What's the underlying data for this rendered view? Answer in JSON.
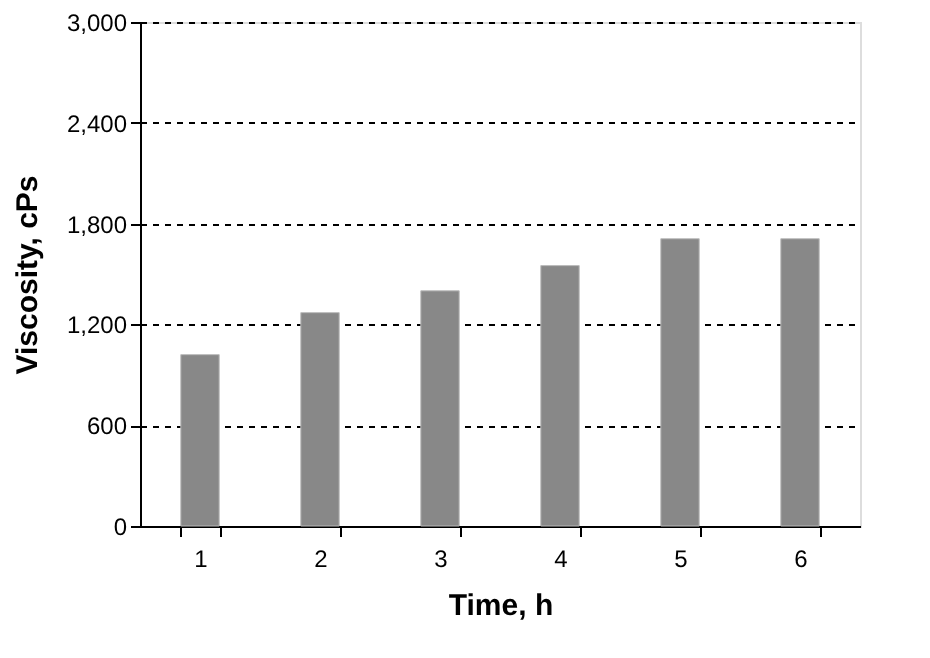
{
  "chart_data": {
    "type": "bar",
    "xlabel": "Time, h",
    "ylabel": "Viscosity, cPs",
    "categories": [
      "1",
      "2",
      "3",
      "4",
      "5",
      "6"
    ],
    "values": [
      1020,
      1270,
      1400,
      1550,
      1710,
      1710
    ],
    "color": "#888888",
    "ylim": [
      0,
      3000
    ],
    "yticks": [
      0,
      600,
      {
        "value": 1200,
        "label": "1,200"
      },
      {
        "value": 1800,
        "label": "1,800"
      },
      {
        "value": 2400,
        "label": "2,400"
      },
      {
        "value": 3000,
        "label": "3,000"
      }
    ],
    "grid": "y"
  }
}
